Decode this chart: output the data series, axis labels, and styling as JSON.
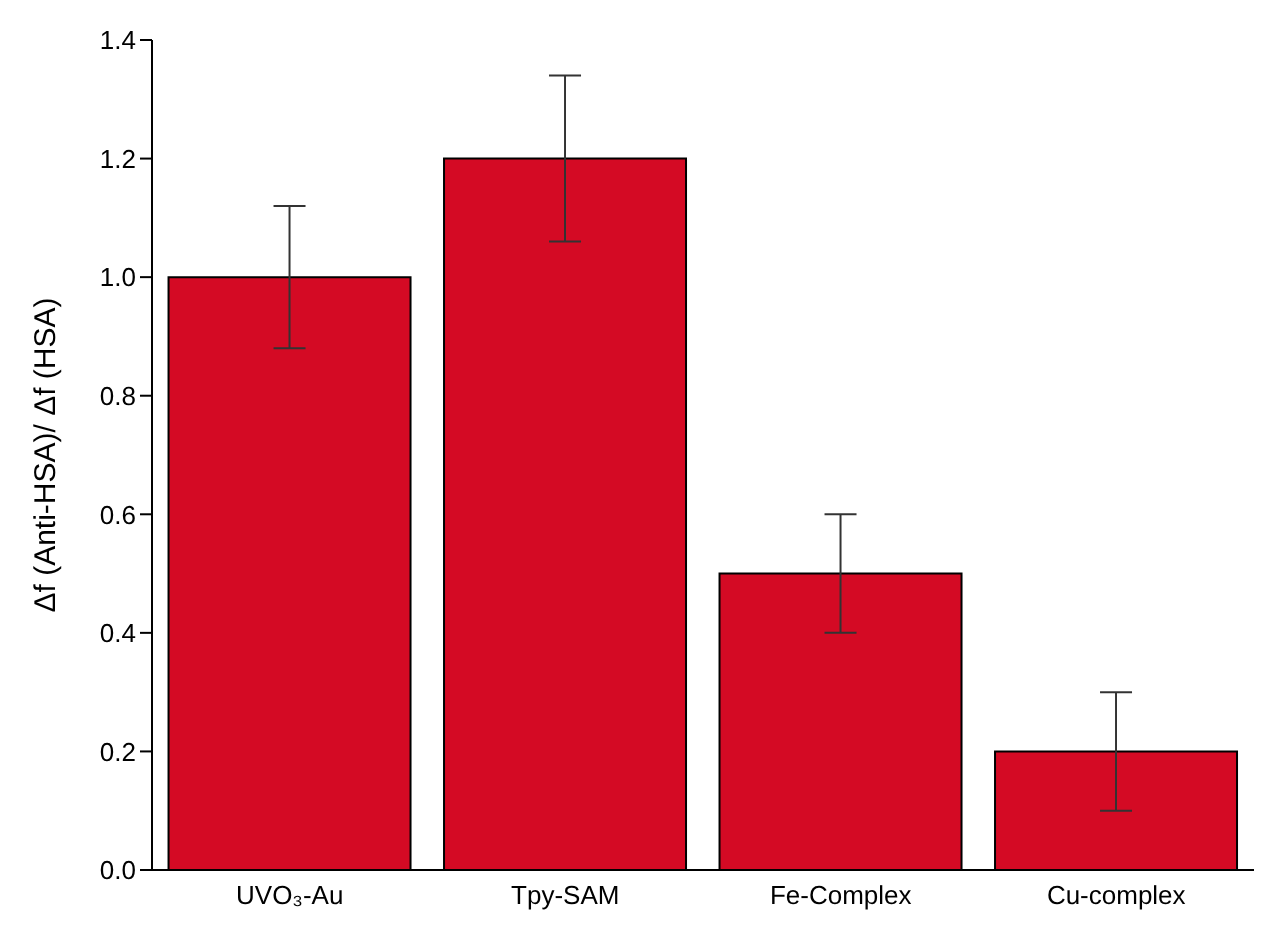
{
  "chart_data": {
    "type": "bar",
    "ylabel": "Δf (Anti-HSA)/ Δf (HSA)",
    "categories": [
      "UVO₃-Au",
      "Tpy-SAM",
      "Fe-Complex",
      "Cu-complex"
    ],
    "values": [
      1.0,
      1.2,
      0.5,
      0.2
    ],
    "errors": [
      0.12,
      0.14,
      0.1,
      0.1
    ],
    "color": "#d40a24",
    "ylim": [
      0,
      1.4
    ],
    "yticks": [
      {
        "value": 0,
        "label": "0.0"
      },
      0.2,
      0.4,
      0.6,
      0.8,
      {
        "value": 1,
        "label": "1.0"
      },
      1.2,
      1.4
    ],
    "grid": false
  }
}
